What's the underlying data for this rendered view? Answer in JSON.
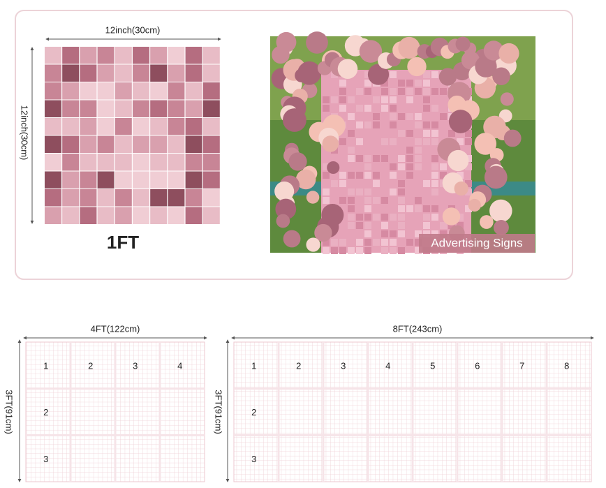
{
  "top_panel": {
    "width_label": "12inch(30cm)",
    "height_label": "12inch(30cm)",
    "size_label": "1FT",
    "photo_caption": "Advertising Signs"
  },
  "layouts": [
    {
      "width_label": "4FT(122cm)",
      "height_label": "3FT(91cm)",
      "numbers": [
        "1",
        "2",
        "3",
        "4",
        "2",
        "3"
      ]
    },
    {
      "width_label": "8FT(243cm)",
      "height_label": "3FT(91cm)",
      "numbers": [
        "1",
        "2",
        "3",
        "4",
        "5",
        "6",
        "7",
        "8",
        "2",
        "3"
      ]
    }
  ]
}
